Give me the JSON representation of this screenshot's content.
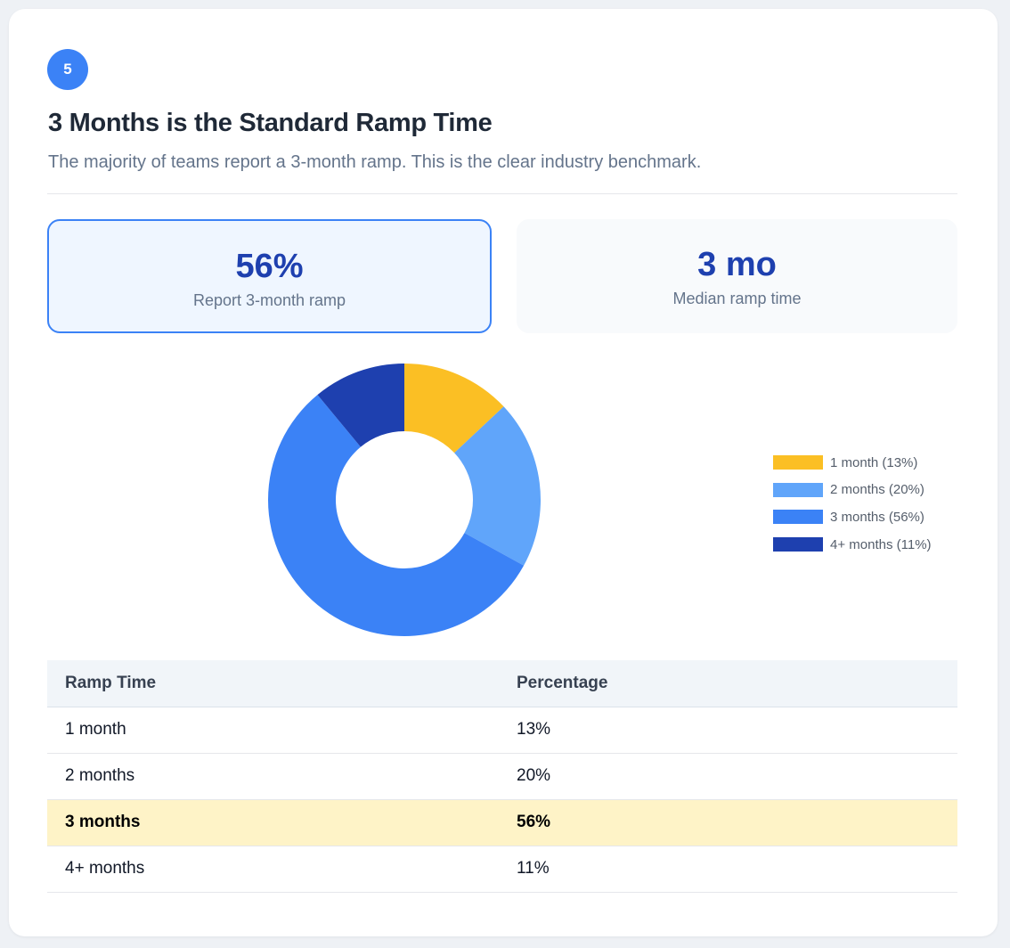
{
  "badge": {
    "number": "5"
  },
  "header": {
    "title": "3 Months is the Standard Ramp Time",
    "subtitle": "The majority of teams report a 3-month ramp. This is the clear industry benchmark."
  },
  "stats": [
    {
      "value": "56%",
      "label": "Report 3-month ramp"
    },
    {
      "value": "3 mo",
      "label": "Median ramp time"
    }
  ],
  "chart_data": {
    "type": "pie",
    "categories": [
      "1 month",
      "2 months",
      "3 months",
      "4+ months"
    ],
    "values": [
      13,
      20,
      56,
      11
    ],
    "legend": [
      "1 month (13%)",
      "2 months (20%)",
      "3 months (56%)",
      "4+ months (11%)"
    ],
    "colors": [
      "#fbbf24",
      "#60a5fa",
      "#3b82f6",
      "#1e40af"
    ],
    "donut": true,
    "legend_position": "right"
  },
  "table": {
    "headers": [
      "Ramp Time",
      "Percentage"
    ],
    "rows": [
      {
        "label": "1 month",
        "value": "13%",
        "highlight": false
      },
      {
        "label": "2 months",
        "value": "20%",
        "highlight": false
      },
      {
        "label": "3 months",
        "value": "56%",
        "highlight": true
      },
      {
        "label": "4+ months",
        "value": "11%",
        "highlight": false
      }
    ]
  }
}
